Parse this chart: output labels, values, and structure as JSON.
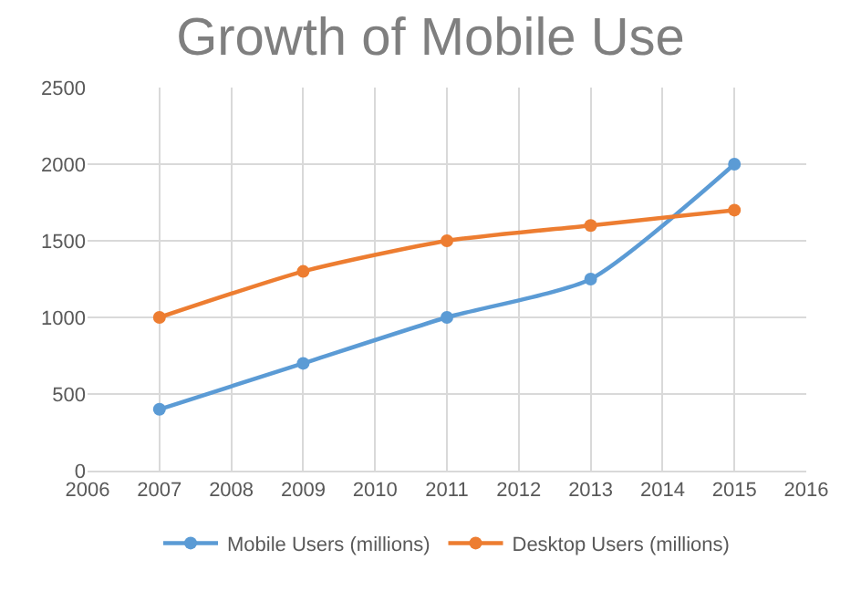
{
  "chart_data": {
    "type": "line",
    "title": "Growth of Mobile Use",
    "x": [
      2007,
      2009,
      2011,
      2013,
      2015
    ],
    "series": [
      {
        "name": "Mobile Users (millions)",
        "color": "#5b9bd5",
        "values": [
          400,
          700,
          1000,
          1250,
          2000
        ]
      },
      {
        "name": "Desktop Users (millions)",
        "color": "#ed7d31",
        "values": [
          1000,
          1300,
          1500,
          1600,
          1700
        ]
      }
    ],
    "xlim": [
      2006,
      2016
    ],
    "xticks": [
      2006,
      2007,
      2008,
      2009,
      2010,
      2011,
      2012,
      2013,
      2014,
      2015,
      2016
    ],
    "ylim": [
      0,
      2500
    ],
    "yticks": [
      0,
      500,
      1000,
      1500,
      2000,
      2500
    ],
    "grid": true,
    "legend": "bottom",
    "marker": "circle",
    "line_style": "solid"
  }
}
